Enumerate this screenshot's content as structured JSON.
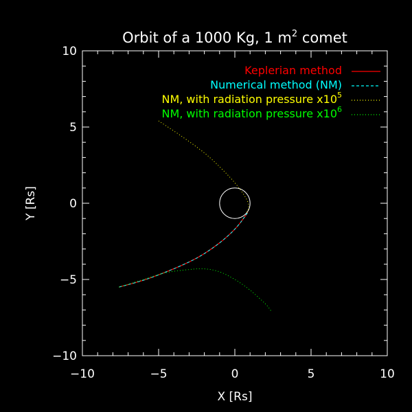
{
  "chart_data": {
    "type": "line",
    "title_prefix": "Orbit of a 1000 Kg, 1 m",
    "title_sup": "2",
    "title_suffix": " comet",
    "xlabel": "X [Rs]",
    "ylabel": "Y [Rs]",
    "xlim": [
      -10,
      10
    ],
    "ylim": [
      -10,
      10
    ],
    "xticks": [
      "−10",
      "−5",
      "0",
      "5",
      "10"
    ],
    "yticks": [
      "−10",
      "−5",
      "0",
      "5",
      "10"
    ],
    "grid": false,
    "legend_position": "top-right",
    "sun": {
      "cx": 0,
      "cy": 0,
      "r": 1,
      "color": "#ffffff"
    },
    "series": [
      {
        "name": "Keplerian method",
        "color": "#ff0000",
        "style": "solid",
        "points": [
          [
            -7.6,
            -5.5
          ],
          [
            -6,
            -5.05
          ],
          [
            -4.5,
            -4.5
          ],
          [
            -3,
            -3.85
          ],
          [
            -2,
            -3.3
          ],
          [
            -1,
            -2.6
          ],
          [
            -0.2,
            -1.9
          ],
          [
            0.3,
            -1.35
          ],
          [
            0.6,
            -0.95
          ],
          [
            0.85,
            -0.6
          ]
        ]
      },
      {
        "name": "Numerical method (NM)",
        "color": "#00ffff",
        "style": "dashed",
        "points": [
          [
            -7.6,
            -5.5
          ],
          [
            -6,
            -5.05
          ],
          [
            -4.5,
            -4.5
          ],
          [
            -3,
            -3.85
          ],
          [
            -2,
            -3.3
          ],
          [
            -1,
            -2.6
          ],
          [
            -0.2,
            -1.9
          ],
          [
            0.3,
            -1.35
          ],
          [
            0.6,
            -0.95
          ],
          [
            0.85,
            -0.6
          ]
        ]
      },
      {
        "name": "NM, with radiation pressure x10",
        "name_sup": "5",
        "color": "#ffff00",
        "style": "dotted",
        "points": [
          [
            -5,
            5.4
          ],
          [
            -3.5,
            4.4
          ],
          [
            -2,
            3.3
          ],
          [
            -0.8,
            2.2
          ],
          [
            0.2,
            1.1
          ],
          [
            0.8,
            0.2
          ],
          [
            0.9,
            -0.3
          ],
          [
            0.75,
            -0.65
          ]
        ]
      },
      {
        "name": "NM, with radiation pressure x10",
        "name_sup": "6",
        "color": "#00ff00",
        "style": "dotted",
        "points": [
          [
            -7.6,
            -5.5
          ],
          [
            -6,
            -5.0
          ],
          [
            -4.5,
            -4.55
          ],
          [
            -3,
            -4.35
          ],
          [
            -2,
            -4.3
          ],
          [
            -1,
            -4.5
          ],
          [
            0,
            -5.0
          ],
          [
            1,
            -5.7
          ],
          [
            2,
            -6.6
          ],
          [
            2.4,
            -7.1
          ]
        ]
      }
    ]
  }
}
